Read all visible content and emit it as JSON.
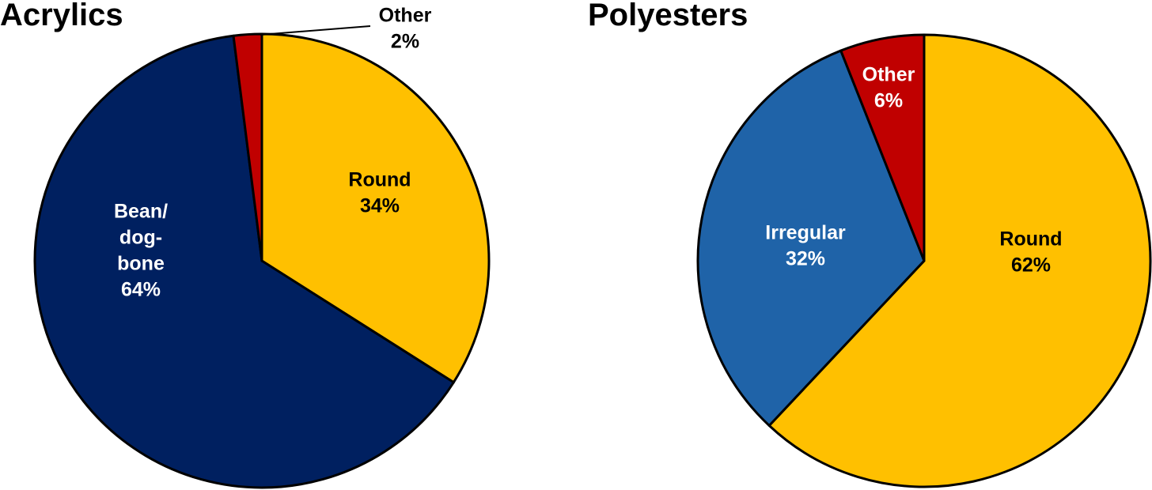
{
  "chart_data": [
    {
      "type": "pie",
      "title": "Acrylics",
      "start": "12 o'clock",
      "direction": "clockwise",
      "slices": [
        {
          "name": "Round",
          "value": 34,
          "label_lines": [
            "Round",
            "34%"
          ],
          "color": "#FFC000",
          "text_color": "#000000"
        },
        {
          "name": "Bean/dog-bone",
          "value": 64,
          "label_lines": [
            "Bean/",
            "dog-",
            "bone",
            "64%"
          ],
          "color": "#002060",
          "text_color": "#FFFFFF"
        },
        {
          "name": "Other",
          "value": 2,
          "label_lines": [
            "Other",
            "2%"
          ],
          "color": "#C00000",
          "text_color": "#000000",
          "label_outside": true
        }
      ]
    },
    {
      "type": "pie",
      "title": "Polyesters",
      "start": "12 o'clock",
      "direction": "clockwise",
      "slices": [
        {
          "name": "Round",
          "value": 62,
          "label_lines": [
            "Round",
            "62%"
          ],
          "color": "#FFC000",
          "text_color": "#000000"
        },
        {
          "name": "Irregular",
          "value": 32,
          "label_lines": [
            "Irregular",
            "32%"
          ],
          "color": "#1F63A8",
          "text_color": "#FFFFFF"
        },
        {
          "name": "Other",
          "value": 6,
          "label_lines": [
            "Other",
            "6%"
          ],
          "color": "#C00000",
          "text_color": "#FFFFFF"
        }
      ]
    }
  ]
}
